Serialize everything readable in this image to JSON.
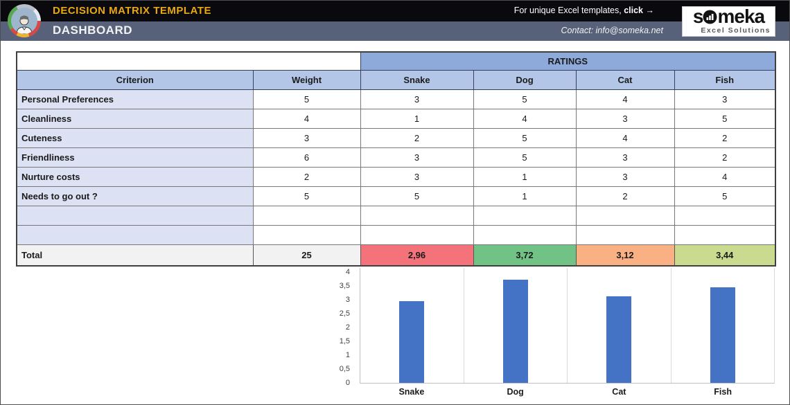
{
  "header": {
    "title": "DECISION MATRIX TEMPLATE",
    "subtitle": "DASHBOARD",
    "promo_text": "For unique Excel templates, ",
    "promo_link": "click",
    "promo_arrow": "→",
    "contact": "Contact: info@someka.net",
    "brand": {
      "part1": "s",
      "part2": "meka",
      "tagline": "Excel Solutions"
    }
  },
  "colors": {
    "band_top": "#0a0a0e",
    "band_bottom": "#57627a",
    "title_gold": "#eaa814",
    "ratings_header_bg": "#8eaadb",
    "column_header_bg": "#b4c6e7",
    "criterion_bg": "#dce2f3",
    "total_bg": "#f2f2f2",
    "bar_blue": "#4472c4"
  },
  "table": {
    "ratings_label": "RATINGS",
    "criterion_header": "Criterion",
    "weight_header": "Weight",
    "option_headers": [
      "Snake",
      "Dog",
      "Cat",
      "Fish"
    ],
    "rows": [
      {
        "criterion": "Personal Preferences",
        "weight": "5",
        "ratings": [
          "3",
          "5",
          "4",
          "3"
        ]
      },
      {
        "criterion": "Cleanliness",
        "weight": "4",
        "ratings": [
          "1",
          "4",
          "3",
          "5"
        ]
      },
      {
        "criterion": "Cuteness",
        "weight": "3",
        "ratings": [
          "2",
          "5",
          "4",
          "2"
        ]
      },
      {
        "criterion": "Friendliness",
        "weight": "6",
        "ratings": [
          "3",
          "5",
          "3",
          "2"
        ]
      },
      {
        "criterion": "Nurture costs",
        "weight": "2",
        "ratings": [
          "3",
          "1",
          "3",
          "4"
        ]
      },
      {
        "criterion": "Needs to go out ?",
        "weight": "5",
        "ratings": [
          "5",
          "1",
          "2",
          "5"
        ]
      },
      {
        "criterion": "",
        "weight": "",
        "ratings": [
          "",
          "",
          "",
          ""
        ]
      },
      {
        "criterion": "",
        "weight": "",
        "ratings": [
          "",
          "",
          "",
          ""
        ]
      }
    ],
    "total": {
      "label": "Total",
      "weight": "25",
      "values": [
        "2,96",
        "3,72",
        "3,12",
        "3,44"
      ],
      "cell_colors": [
        "#f4737a",
        "#71c285",
        "#f9b183",
        "#cada8e"
      ]
    }
  },
  "chart_data": {
    "type": "bar",
    "title": "",
    "categories": [
      "Snake",
      "Dog",
      "Cat",
      "Fish"
    ],
    "values": [
      2.96,
      3.72,
      3.12,
      3.44
    ],
    "xlabel": "",
    "ylabel": "",
    "ylim": [
      0,
      4
    ],
    "ytick_step": 0.5,
    "ytick_labels": [
      "0",
      "0,5",
      "1",
      "1,5",
      "2",
      "2,5",
      "3",
      "3,5",
      "4"
    ],
    "grid": false,
    "legend": false,
    "bar_color": "#4472c4"
  }
}
